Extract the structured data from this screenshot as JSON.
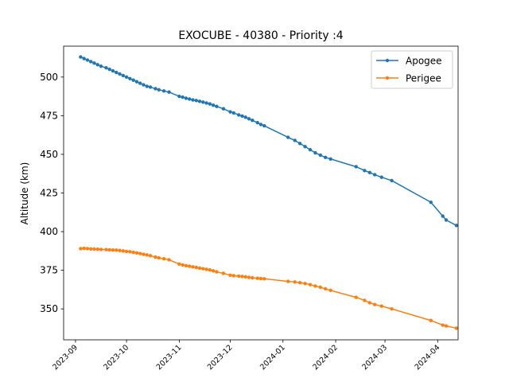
{
  "chart_data": {
    "type": "line",
    "title": "EXOCUBE - 40380 - Priority :4",
    "xlabel": "",
    "ylabel": "Altitude (km)",
    "x_type": "date",
    "xlim": [
      "2023-08-25",
      "2024-04-13"
    ],
    "ylim": [
      330,
      520
    ],
    "x_ticks": [
      "2023-09",
      "2023-10",
      "2023-11",
      "2023-12",
      "2024-01",
      "2024-02",
      "2024-03",
      "2024-04"
    ],
    "y_ticks": [
      350,
      375,
      400,
      425,
      450,
      475,
      500
    ],
    "grid": false,
    "legend_position": "top-right",
    "series": [
      {
        "name": "Apogee",
        "color": "#1f77b4",
        "points": [
          [
            "2023-09-04",
            513
          ],
          [
            "2023-09-06",
            512
          ],
          [
            "2023-09-08",
            511
          ],
          [
            "2023-09-10",
            510
          ],
          [
            "2023-09-12",
            509
          ],
          [
            "2023-09-14",
            508
          ],
          [
            "2023-09-16",
            507
          ],
          [
            "2023-09-19",
            506
          ],
          [
            "2023-09-21",
            505
          ],
          [
            "2023-09-23",
            504
          ],
          [
            "2023-09-25",
            503
          ],
          [
            "2023-09-27",
            502
          ],
          [
            "2023-09-29",
            501
          ],
          [
            "2023-10-01",
            500
          ],
          [
            "2023-10-03",
            499
          ],
          [
            "2023-10-05",
            498
          ],
          [
            "2023-10-07",
            497
          ],
          [
            "2023-10-09",
            496
          ],
          [
            "2023-10-11",
            495
          ],
          [
            "2023-10-13",
            494
          ],
          [
            "2023-10-15",
            493.5
          ],
          [
            "2023-10-18",
            492.5
          ],
          [
            "2023-10-20",
            491.8
          ],
          [
            "2023-10-23",
            491
          ],
          [
            "2023-10-26",
            490.3
          ],
          [
            "2023-11-01",
            487.5
          ],
          [
            "2023-11-03",
            487
          ],
          [
            "2023-11-05",
            486.3
          ],
          [
            "2023-11-07",
            485.8
          ],
          [
            "2023-11-09",
            485.2
          ],
          [
            "2023-11-11",
            484.8
          ],
          [
            "2023-11-13",
            484.3
          ],
          [
            "2023-11-15",
            483.8
          ],
          [
            "2023-11-17",
            483.2
          ],
          [
            "2023-11-19",
            482.6
          ],
          [
            "2023-11-21",
            481.8
          ],
          [
            "2023-11-23",
            481
          ],
          [
            "2023-11-27",
            479.5
          ],
          [
            "2023-12-01",
            477.5
          ],
          [
            "2023-12-03",
            476.8
          ],
          [
            "2023-12-06",
            475.5
          ],
          [
            "2023-12-08",
            474.8
          ],
          [
            "2023-12-10",
            474
          ],
          [
            "2023-12-12",
            473
          ],
          [
            "2023-12-14",
            472
          ],
          [
            "2023-12-17",
            470.5
          ],
          [
            "2023-12-19",
            469.3
          ],
          [
            "2023-12-21",
            468.5
          ],
          [
            "2024-01-04",
            461
          ],
          [
            "2024-01-08",
            459
          ],
          [
            "2024-01-11",
            457
          ],
          [
            "2024-01-14",
            455
          ],
          [
            "2024-01-17",
            453
          ],
          [
            "2024-01-20",
            451
          ],
          [
            "2024-01-23",
            449.5
          ],
          [
            "2024-01-26",
            448
          ],
          [
            "2024-01-29",
            447
          ],
          [
            "2024-02-13",
            442
          ],
          [
            "2024-02-18",
            439.5
          ],
          [
            "2024-02-21",
            438.2
          ],
          [
            "2024-02-24",
            436.8
          ],
          [
            "2024-02-28",
            435.2
          ],
          [
            "2024-03-05",
            433
          ],
          [
            "2024-03-28",
            419
          ],
          [
            "2024-04-04",
            410
          ],
          [
            "2024-04-06",
            407.5
          ],
          [
            "2024-04-12",
            404
          ]
        ]
      },
      {
        "name": "Perigee",
        "color": "#ff7f0e",
        "points": [
          [
            "2023-09-04",
            389
          ],
          [
            "2023-09-06",
            389.2
          ],
          [
            "2023-09-08",
            389
          ],
          [
            "2023-09-10",
            388.8
          ],
          [
            "2023-09-12",
            388.7
          ],
          [
            "2023-09-14",
            388.6
          ],
          [
            "2023-09-16",
            388.5
          ],
          [
            "2023-09-19",
            388.4
          ],
          [
            "2023-09-21",
            388.2
          ],
          [
            "2023-09-23",
            388.1
          ],
          [
            "2023-09-25",
            388
          ],
          [
            "2023-09-27",
            387.8
          ],
          [
            "2023-09-29",
            387.5
          ],
          [
            "2023-10-01",
            387.2
          ],
          [
            "2023-10-03",
            387
          ],
          [
            "2023-10-05",
            386.6
          ],
          [
            "2023-10-07",
            386.2
          ],
          [
            "2023-10-09",
            385.8
          ],
          [
            "2023-10-11",
            385.3
          ],
          [
            "2023-10-13",
            384.9
          ],
          [
            "2023-10-15",
            384.4
          ],
          [
            "2023-10-18",
            383.5
          ],
          [
            "2023-10-20",
            383
          ],
          [
            "2023-10-23",
            382.4
          ],
          [
            "2023-10-26",
            381.8
          ],
          [
            "2023-11-01",
            379
          ],
          [
            "2023-11-03",
            378.4
          ],
          [
            "2023-11-05",
            378
          ],
          [
            "2023-11-07",
            377.6
          ],
          [
            "2023-11-09",
            377.2
          ],
          [
            "2023-11-11",
            376.8
          ],
          [
            "2023-11-13",
            376.4
          ],
          [
            "2023-11-15",
            376
          ],
          [
            "2023-11-17",
            375.6
          ],
          [
            "2023-11-19",
            375.2
          ],
          [
            "2023-11-21",
            374.6
          ],
          [
            "2023-11-23",
            374
          ],
          [
            "2023-11-27",
            373
          ],
          [
            "2023-12-01",
            371.8
          ],
          [
            "2023-12-03",
            371.5
          ],
          [
            "2023-12-06",
            371.2
          ],
          [
            "2023-12-08",
            371
          ],
          [
            "2023-12-10",
            370.7
          ],
          [
            "2023-12-12",
            370.4
          ],
          [
            "2023-12-14",
            370.1
          ],
          [
            "2023-12-17",
            369.8
          ],
          [
            "2023-12-19",
            369.6
          ],
          [
            "2023-12-21",
            369.5
          ],
          [
            "2024-01-04",
            367.8
          ],
          [
            "2024-01-08",
            367.4
          ],
          [
            "2024-01-11",
            367
          ],
          [
            "2024-01-14",
            366.4
          ],
          [
            "2024-01-17",
            365.7
          ],
          [
            "2024-01-20",
            364.8
          ],
          [
            "2024-01-23",
            364
          ],
          [
            "2024-01-26",
            363
          ],
          [
            "2024-01-29",
            362
          ],
          [
            "2024-02-13",
            357.5
          ],
          [
            "2024-02-18",
            355.5
          ],
          [
            "2024-02-21",
            354
          ],
          [
            "2024-02-24",
            352.8
          ],
          [
            "2024-02-28",
            351.8
          ],
          [
            "2024-03-05",
            350
          ],
          [
            "2024-03-28",
            342.5
          ],
          [
            "2024-04-04",
            339.5
          ],
          [
            "2024-04-06",
            339
          ],
          [
            "2024-04-12",
            337.5
          ]
        ]
      }
    ]
  }
}
